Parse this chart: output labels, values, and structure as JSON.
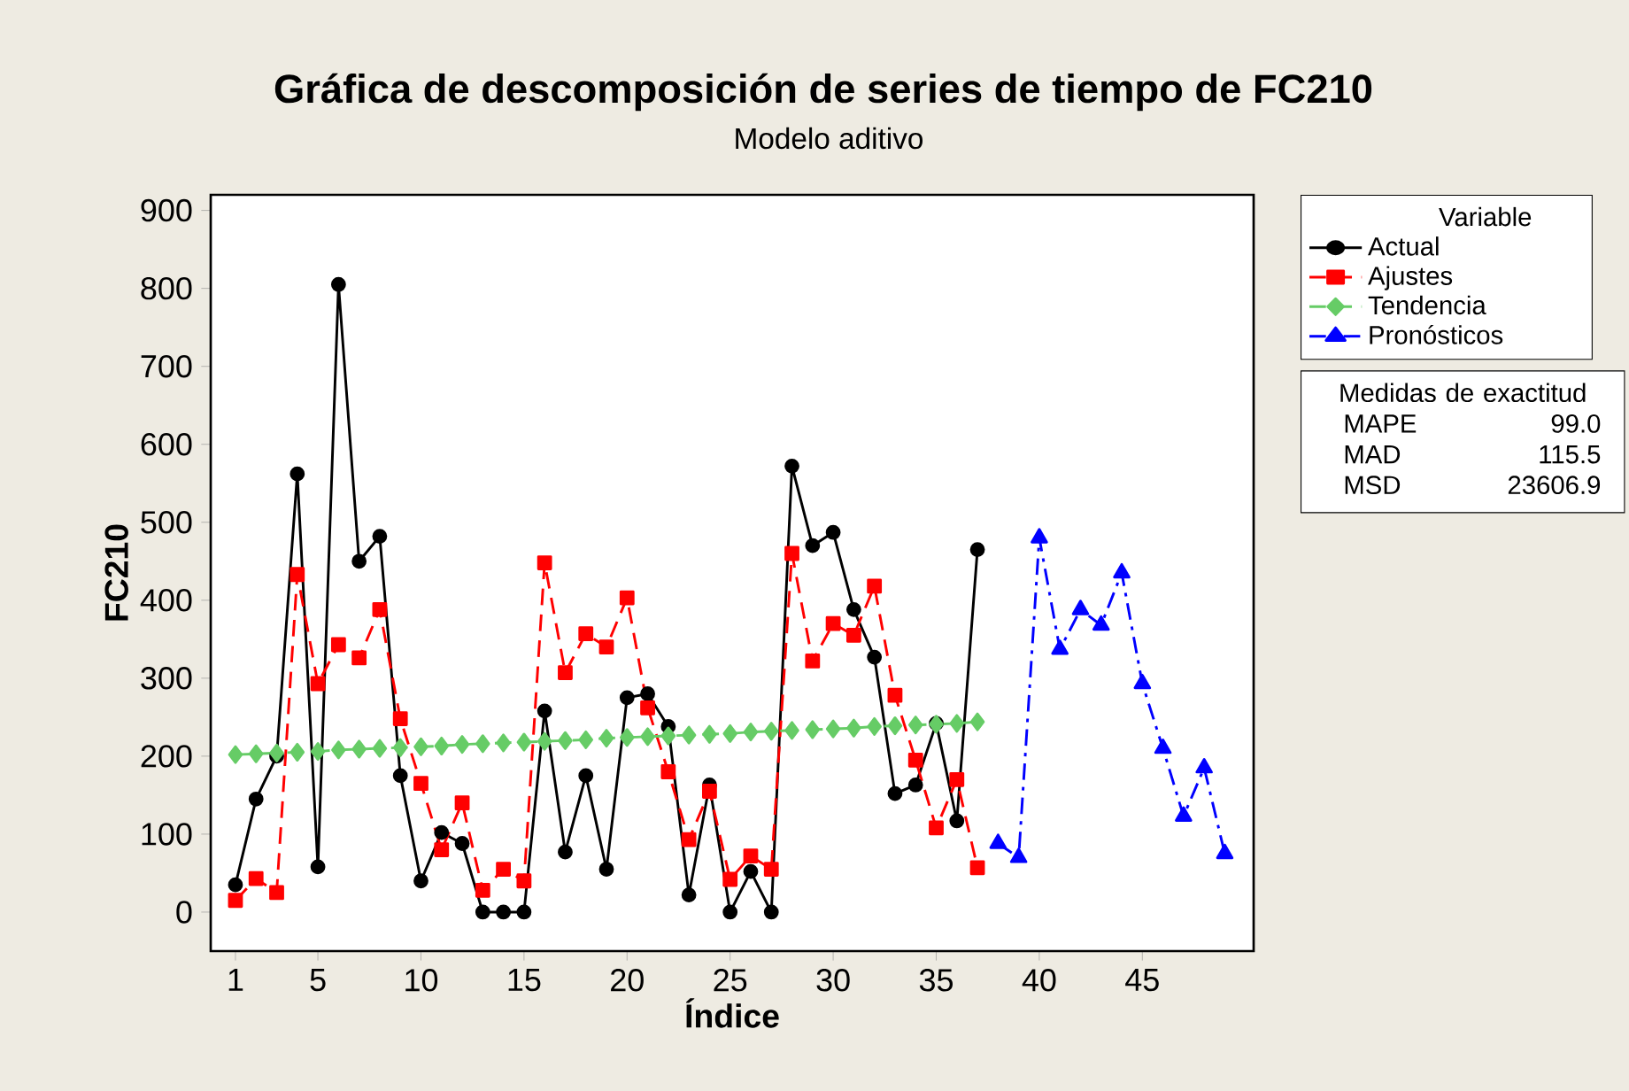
{
  "chart_data": {
    "type": "line",
    "title": "Gráfica de descomposición de series de tiempo de FC210",
    "subtitle": "Modelo aditivo",
    "xlabel": "Índice",
    "ylabel": "FC210",
    "legend_title": "Variable",
    "legend": "right",
    "xlim": [
      -0.2,
      50.4
    ],
    "ylim": [
      -50,
      920
    ],
    "xticks": [
      1,
      5,
      10,
      15,
      20,
      25,
      30,
      35,
      40,
      45
    ],
    "yticks": [
      0,
      100,
      200,
      300,
      400,
      500,
      600,
      700,
      800,
      900
    ],
    "grid": false,
    "series": [
      {
        "name": "Actual",
        "color": "#000000",
        "marker": "circle",
        "line_style": "solid",
        "x": [
          1,
          2,
          3,
          4,
          5,
          6,
          7,
          8,
          9,
          10,
          11,
          12,
          13,
          14,
          15,
          16,
          17,
          18,
          19,
          20,
          21,
          22,
          23,
          24,
          25,
          26,
          27,
          28,
          29,
          30,
          31,
          32,
          33,
          34,
          35,
          36,
          37
        ],
        "values": [
          35,
          145,
          200,
          562,
          58,
          805,
          450,
          482,
          175,
          40,
          102,
          88,
          0,
          0,
          0,
          258,
          77,
          175,
          55,
          275,
          280,
          238,
          22,
          163,
          0,
          52,
          0,
          572,
          470,
          487,
          388,
          327,
          152,
          163,
          242,
          117,
          465
        ]
      },
      {
        "name": "Ajustes",
        "color": "#ff0000",
        "marker": "square",
        "line_style": "dashed",
        "x": [
          1,
          2,
          3,
          4,
          5,
          6,
          7,
          8,
          9,
          10,
          11,
          12,
          13,
          14,
          15,
          16,
          17,
          18,
          19,
          20,
          21,
          22,
          23,
          24,
          25,
          26,
          27,
          28,
          29,
          30,
          31,
          32,
          33,
          34,
          35,
          36,
          37
        ],
        "values": [
          15,
          43,
          25,
          433,
          293,
          343,
          326,
          388,
          248,
          165,
          80,
          140,
          28,
          55,
          40,
          448,
          307,
          357,
          340,
          403,
          262,
          180,
          93,
          155,
          42,
          72,
          55,
          460,
          322,
          370,
          355,
          418,
          278,
          195,
          108,
          170,
          57
        ]
      },
      {
        "name": "Tendencia",
        "color": "#66cc66",
        "marker": "diamond",
        "line_style": "dashed",
        "x": [
          1,
          2,
          3,
          4,
          5,
          6,
          7,
          8,
          9,
          10,
          11,
          12,
          13,
          14,
          15,
          16,
          17,
          18,
          19,
          20,
          21,
          22,
          23,
          24,
          25,
          26,
          27,
          28,
          29,
          30,
          31,
          32,
          33,
          34,
          35,
          36,
          37
        ],
        "values": [
          202,
          203,
          204,
          205,
          206,
          208,
          209,
          210,
          211,
          212,
          213,
          215,
          216,
          217,
          218,
          219,
          220,
          221,
          223,
          224,
          225,
          226,
          227,
          228,
          229,
          231,
          232,
          233,
          234,
          235,
          236,
          238,
          239,
          240,
          241,
          242,
          244
        ]
      },
      {
        "name": "Pronósticos",
        "color": "#0000ff",
        "marker": "triangle",
        "line_style": "dashdot",
        "x": [
          38,
          39,
          40,
          41,
          42,
          43,
          44,
          45,
          46,
          47,
          48,
          49
        ],
        "values": [
          88,
          70,
          480,
          337,
          388,
          368,
          435,
          293,
          210,
          123,
          185,
          75
        ]
      }
    ],
    "annotations": [
      "Medidas de exactitud",
      "MAPE",
      "99.0",
      "MAD",
      "115.5",
      "MSD",
      "23606.9"
    ]
  }
}
